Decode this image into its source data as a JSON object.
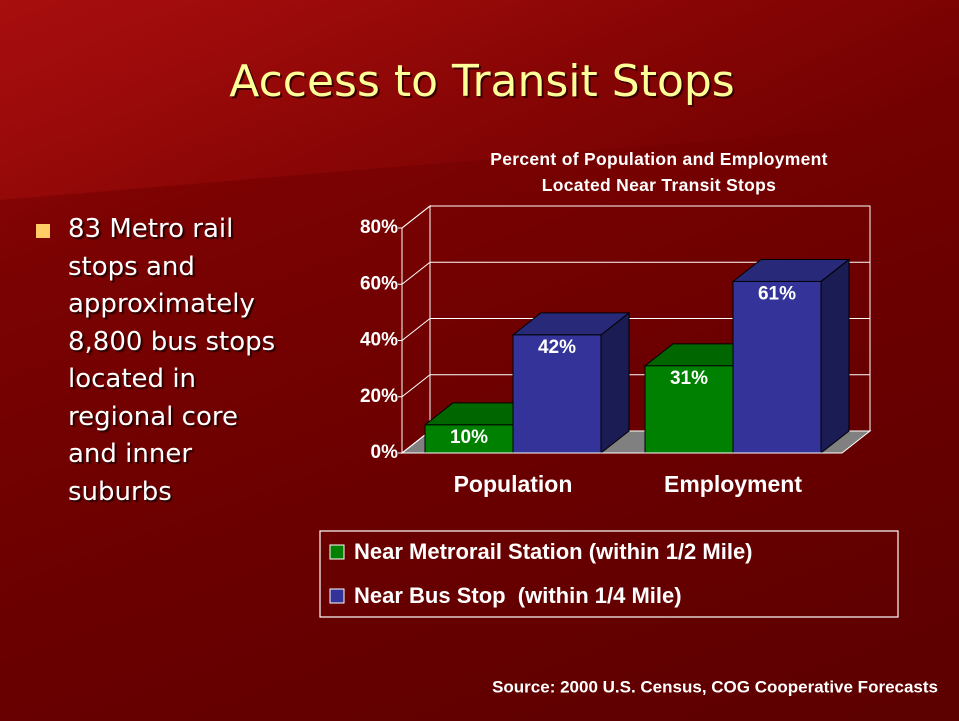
{
  "slide": {
    "title": "Access to Transit Stops",
    "bullet": "83 Metro rail stops and approximately 8,800 bus stops located in regional core and inner suburbs",
    "source": "Source: 2000 U.S. Census, COG Cooperative Forecasts"
  },
  "chart_data": {
    "type": "bar3d",
    "title": "Percent of Population and Employment\nLocated Near Transit Stops",
    "categories": [
      "Population",
      "Employment"
    ],
    "series": [
      {
        "name": "Near Metrorail Station (within 1/2 Mile)",
        "color": "#008000",
        "values": [
          10,
          31
        ],
        "value_labels": [
          "10%",
          "31%"
        ]
      },
      {
        "name": "Near Bus Stop  (within 1/4 Mile)",
        "color": "#333399",
        "values": [
          42,
          61
        ],
        "value_labels": [
          "42%",
          "61%"
        ]
      }
    ],
    "ylim": [
      0,
      80
    ],
    "yticks": [
      {
        "value": 0,
        "label": "0%"
      },
      {
        "value": 20,
        "label": "20%"
      },
      {
        "value": 40,
        "label": "40%"
      },
      {
        "value": 60,
        "label": "60%"
      },
      {
        "value": 80,
        "label": "80%"
      }
    ],
    "grid": true,
    "legend": "bottom"
  }
}
